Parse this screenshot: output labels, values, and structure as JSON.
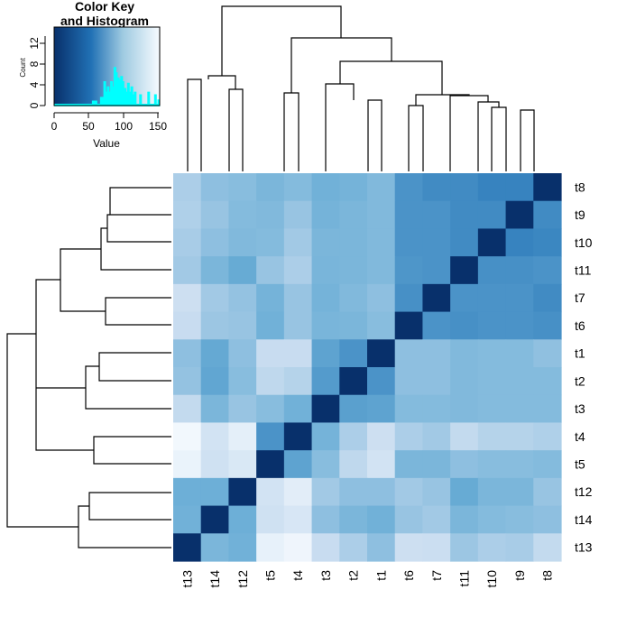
{
  "chart_data": {
    "type": "heatmap",
    "title": "",
    "row_labels": [
      "t8",
      "t9",
      "t10",
      "t11",
      "t7",
      "t6",
      "t1",
      "t2",
      "t3",
      "t4",
      "t5",
      "t12",
      "t14",
      "t13"
    ],
    "col_labels": [
      "t13",
      "t14",
      "t12",
      "t5",
      "t4",
      "t3",
      "t2",
      "t1",
      "t6",
      "t7",
      "t11",
      "t10",
      "t9",
      "t8"
    ],
    "values": [
      [
        60,
        75,
        78,
        85,
        80,
        90,
        88,
        82,
        110,
        115,
        115,
        120,
        120,
        155
      ],
      [
        58,
        70,
        80,
        82,
        70,
        88,
        85,
        82,
        110,
        110,
        115,
        115,
        155,
        115
      ],
      [
        62,
        75,
        82,
        80,
        65,
        85,
        85,
        82,
        110,
        110,
        115,
        155,
        120,
        118
      ],
      [
        65,
        85,
        95,
        70,
        60,
        86,
        85,
        82,
        108,
        110,
        155,
        112,
        112,
        110
      ],
      [
        40,
        65,
        72,
        88,
        70,
        88,
        82,
        75,
        112,
        155,
        110,
        110,
        110,
        115
      ],
      [
        45,
        68,
        70,
        90,
        70,
        86,
        85,
        78,
        155,
        110,
        112,
        110,
        110,
        112
      ],
      [
        75,
        96,
        75,
        45,
        45,
        100,
        110,
        155,
        75,
        75,
        82,
        80,
        80,
        74
      ],
      [
        72,
        98,
        78,
        50,
        55,
        105,
        155,
        110,
        75,
        75,
        82,
        80,
        80,
        80
      ],
      [
        48,
        85,
        70,
        78,
        90,
        155,
        102,
        100,
        80,
        80,
        82,
        80,
        80,
        80
      ],
      [
        5,
        35,
        18,
        110,
        155,
        88,
        60,
        40,
        60,
        65,
        48,
        55,
        55,
        58
      ],
      [
        12,
        38,
        28,
        155,
        100,
        78,
        50,
        35,
        85,
        85,
        75,
        78,
        78,
        80
      ],
      [
        92,
        92,
        155,
        35,
        20,
        65,
        75,
        75,
        65,
        70,
        95,
        85,
        85,
        70
      ],
      [
        90,
        155,
        92,
        38,
        30,
        75,
        85,
        90,
        70,
        65,
        85,
        80,
        78,
        75
      ],
      [
        155,
        85,
        90,
        15,
        8,
        45,
        60,
        75,
        40,
        42,
        68,
        60,
        62,
        48
      ]
    ],
    "color_scale": {
      "min": 0,
      "max": 155,
      "low_color": "#F7FBFF",
      "high_color": "#08306B",
      "hist_color": "#00FFFF"
    },
    "color_key": {
      "title_line1": "Color Key",
      "title_line2": "and Histogram",
      "xlabel": "Value",
      "ylabel": "Count",
      "x_ticks": [
        "0",
        "50",
        "100",
        "150"
      ],
      "y_ticks": [
        "0",
        "4",
        "8",
        "12"
      ],
      "x_range": [
        0,
        155
      ],
      "y_range": [
        0,
        15
      ],
      "histogram": [
        {
          "x": 58,
          "count": 0.8
        },
        {
          "x": 60,
          "count": 0.8
        },
        {
          "x": 62,
          "count": 0.8
        },
        {
          "x": 70,
          "count": 1.5
        },
        {
          "x": 72,
          "count": 1.5
        },
        {
          "x": 75,
          "count": 4.5
        },
        {
          "x": 78,
          "count": 2.5
        },
        {
          "x": 80,
          "count": 3.5
        },
        {
          "x": 82,
          "count": 2.5
        },
        {
          "x": 85,
          "count": 4.5
        },
        {
          "x": 88,
          "count": 3.5
        },
        {
          "x": 90,
          "count": 7.2
        },
        {
          "x": 92,
          "count": 6.2
        },
        {
          "x": 95,
          "count": 5.2
        },
        {
          "x": 98,
          "count": 4.8
        },
        {
          "x": 100,
          "count": 5.5
        },
        {
          "x": 102,
          "count": 4.5
        },
        {
          "x": 105,
          "count": 3.2
        },
        {
          "x": 108,
          "count": 2.5
        },
        {
          "x": 110,
          "count": 4.2
        },
        {
          "x": 112,
          "count": 2.5
        },
        {
          "x": 115,
          "count": 3.5
        },
        {
          "x": 118,
          "count": 2.0
        },
        {
          "x": 120,
          "count": 2.5
        },
        {
          "x": 128,
          "count": 2.0
        },
        {
          "x": 140,
          "count": 2.5
        },
        {
          "x": 150,
          "count": 2.0
        },
        {
          "x": 155,
          "count": 1.0
        }
      ]
    }
  }
}
